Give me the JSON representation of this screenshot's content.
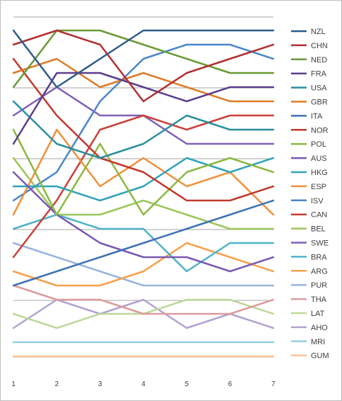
{
  "chart_data": {
    "type": "line",
    "title": "",
    "xlabel": "",
    "ylabel": "",
    "x": [
      1,
      2,
      3,
      4,
      5,
      6,
      7
    ],
    "y_inverted": true,
    "ylim": [
      1,
      24
    ],
    "grid": true,
    "legend_position": "right",
    "series": [
      {
        "name": "NZL",
        "color": "#2e5c8a",
        "values": [
          1,
          5,
          3,
          1,
          1,
          1,
          1
        ]
      },
      {
        "name": "CHN",
        "color": "#b03030",
        "values": [
          2,
          1,
          2,
          6,
          4,
          3,
          2
        ]
      },
      {
        "name": "NED",
        "color": "#6a9a35",
        "values": [
          5,
          1,
          1,
          2,
          3,
          4,
          4
        ]
      },
      {
        "name": "FRA",
        "color": "#5b3e8c",
        "values": [
          9,
          4,
          4,
          5,
          6,
          5,
          5
        ]
      },
      {
        "name": "USA",
        "color": "#2a8f9f",
        "values": [
          6,
          9,
          10,
          9,
          7,
          8,
          8
        ]
      },
      {
        "name": "GBR",
        "color": "#e07b24",
        "values": [
          4,
          3,
          5,
          4,
          5,
          6,
          6
        ]
      },
      {
        "name": "ITA",
        "color": "#3f72b5",
        "values": [
          19,
          18,
          17,
          16,
          15,
          14,
          13
        ]
      },
      {
        "name": "NOR",
        "color": "#c0392b",
        "values": [
          3,
          7,
          10,
          11,
          13,
          13,
          12
        ]
      },
      {
        "name": "POL",
        "color": "#8cb840",
        "values": [
          8,
          14,
          9,
          14,
          11,
          10,
          11
        ]
      },
      {
        "name": "AUS",
        "color": "#7a58b0",
        "values": [
          11,
          14,
          16,
          17,
          17,
          18,
          17
        ]
      },
      {
        "name": "HKG",
        "color": "#31a3b8",
        "values": [
          12,
          12,
          13,
          12,
          10,
          11,
          10
        ]
      },
      {
        "name": "ESP",
        "color": "#f0903a",
        "values": [
          14,
          8,
          12,
          10,
          12,
          11,
          14
        ]
      },
      {
        "name": "ISV",
        "color": "#4a86c8",
        "values": [
          13,
          11,
          6,
          3,
          2,
          2,
          3
        ]
      },
      {
        "name": "CAN",
        "color": "#c9403a",
        "values": [
          17,
          13,
          8,
          7,
          8,
          7,
          7
        ]
      },
      {
        "name": "BEL",
        "color": "#9bc65a",
        "values": [
          10,
          14,
          14,
          13,
          14,
          15,
          15
        ]
      },
      {
        "name": "SWE",
        "color": "#8060b8",
        "values": [
          7,
          5,
          7,
          7,
          9,
          9,
          9
        ]
      },
      {
        "name": "BRA",
        "color": "#4fb3c7",
        "values": [
          15,
          14,
          15,
          15,
          18,
          16,
          16
        ]
      },
      {
        "name": "ARG",
        "color": "#f7a04a",
        "values": [
          18,
          19,
          19,
          18,
          16,
          17,
          18
        ]
      },
      {
        "name": "PUR",
        "color": "#98b4dc",
        "values": [
          16,
          17,
          18,
          19,
          19,
          19,
          19
        ]
      },
      {
        "name": "THA",
        "color": "#dc9b9b",
        "values": [
          19,
          20,
          20,
          21,
          21,
          21,
          20
        ]
      },
      {
        "name": "LAT",
        "color": "#bcd89a",
        "values": [
          21,
          22,
          21,
          21,
          20,
          20,
          21
        ]
      },
      {
        "name": "AHO",
        "color": "#b3a2d2",
        "values": [
          22,
          20,
          21,
          20,
          22,
          21,
          22
        ]
      },
      {
        "name": "MRI",
        "color": "#92cfe0",
        "values": [
          23,
          23,
          23,
          23,
          23,
          23,
          23
        ]
      },
      {
        "name": "GUM",
        "color": "#f9c49c",
        "values": [
          24,
          24,
          24,
          24,
          24,
          24,
          24
        ]
      }
    ]
  }
}
